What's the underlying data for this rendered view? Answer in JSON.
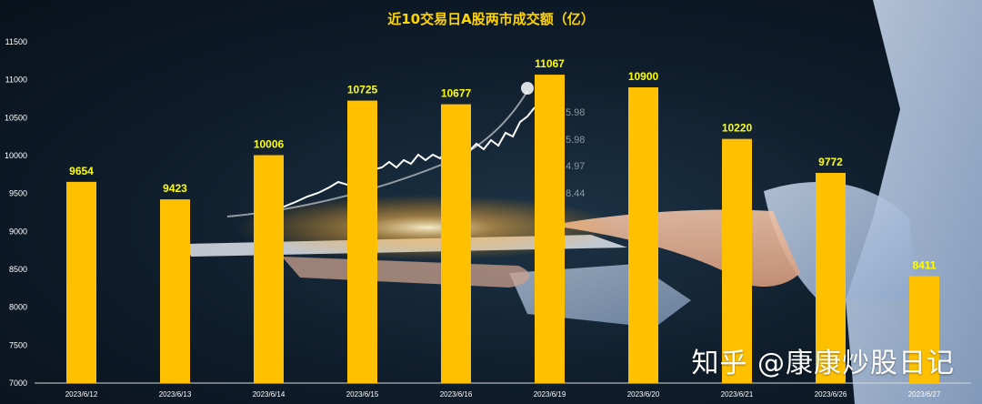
{
  "chart_data": {
    "type": "bar",
    "title": "近10交易日A股两市成交额（亿）",
    "categories": [
      "2023/6/12",
      "2023/6/13",
      "2023/6/14",
      "2023/6/15",
      "2023/6/16",
      "2023/6/19",
      "2023/6/20",
      "2023/6/21",
      "2023/6/26",
      "2023/6/27"
    ],
    "values": [
      9654,
      9423,
      10006,
      10725,
      10677,
      11067,
      10900,
      10220,
      9772,
      8411
    ],
    "ylim": [
      7000,
      11500
    ],
    "yticks": [
      7000,
      7500,
      8000,
      8500,
      9000,
      9500,
      10000,
      10500,
      11000,
      11500
    ],
    "xlabel": "",
    "ylabel": "",
    "grid": false,
    "bar_color": "#ffc000",
    "label_color": "#ffff00"
  },
  "background": {
    "screen_numbers": [
      "5.98",
      "5.98",
      "4.97",
      "8.44"
    ]
  },
  "watermark": "知乎 @康康炒股日记"
}
